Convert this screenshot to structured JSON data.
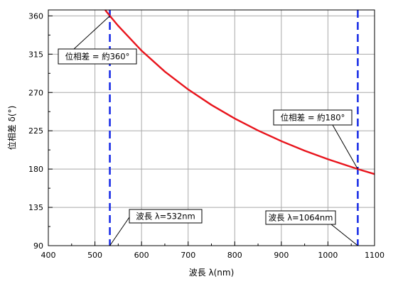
{
  "chart_data": {
    "type": "line",
    "title": "",
    "xlabel": "波長 λ(nm)",
    "ylabel": "位相差 δ(°)",
    "xlim": [
      400,
      1100
    ],
    "ylim": [
      90,
      367
    ],
    "xticks": [
      400,
      500,
      600,
      700,
      800,
      900,
      1000,
      1100
    ],
    "yticks": [
      90,
      135,
      180,
      225,
      270,
      315,
      360
    ],
    "grid": true,
    "series": [
      {
        "color": "#e8141c",
        "formula": "y = 191520 / x",
        "x": [
          522,
          532,
          550,
          600,
          650,
          700,
          750,
          800,
          850,
          900,
          950,
          1000,
          1064,
          1100
        ],
        "y": [
          366.9,
          360,
          348.2,
          319.2,
          294.6,
          273.6,
          255.4,
          239.4,
          225.3,
          212.8,
          201.6,
          191.5,
          180,
          174.1
        ]
      }
    ],
    "reference_lines": [
      {
        "x": 532,
        "color": "#1a2ee6",
        "style": "dashed"
      },
      {
        "x": 1064,
        "color": "#1a2ee6",
        "style": "dashed"
      }
    ],
    "annotations": [
      {
        "text": "位相差 = 約360°",
        "target": [
          532,
          360
        ]
      },
      {
        "text": "位相差 = 約180°",
        "target": [
          1064,
          180
        ]
      },
      {
        "text": "波長 λ=532nm",
        "target": [
          532,
          90
        ]
      },
      {
        "text": "波長 λ=1064nm",
        "target": [
          1064,
          90
        ]
      }
    ]
  }
}
